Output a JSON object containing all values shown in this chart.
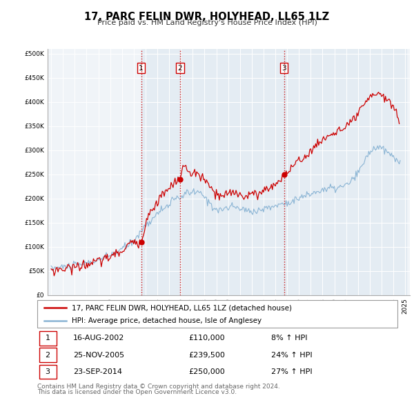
{
  "title": "17, PARC FELIN DWR, HOLYHEAD, LL65 1LZ",
  "subtitle": "Price paid vs. HM Land Registry's House Price Index (HPI)",
  "legend_line1": "17, PARC FELIN DWR, HOLYHEAD, LL65 1LZ (detached house)",
  "legend_line2": "HPI: Average price, detached house, Isle of Anglesey",
  "footer1": "Contains HM Land Registry data © Crown copyright and database right 2024.",
  "footer2": "This data is licensed under the Open Government Licence v3.0.",
  "sales": [
    {
      "label": "1",
      "date": "16-AUG-2002",
      "price": 110000,
      "pct": "8%",
      "dir": "↑"
    },
    {
      "label": "2",
      "date": "25-NOV-2005",
      "price": 239500,
      "pct": "24%",
      "dir": "↑"
    },
    {
      "label": "3",
      "date": "23-SEP-2014",
      "price": 250000,
      "pct": "27%",
      "dir": "↑"
    }
  ],
  "sale_years": [
    2002.625,
    2005.917,
    2014.73
  ],
  "sale_prices": [
    110000,
    239500,
    250000
  ],
  "hpi_color": "#8ab4d4",
  "price_color": "#cc0000",
  "vline_color": "#cc0000",
  "shade_color": "#dde8f0",
  "ylim": [
    0,
    510000
  ],
  "yticks": [
    0,
    50000,
    100000,
    150000,
    200000,
    250000,
    300000,
    350000,
    400000,
    450000,
    500000
  ]
}
